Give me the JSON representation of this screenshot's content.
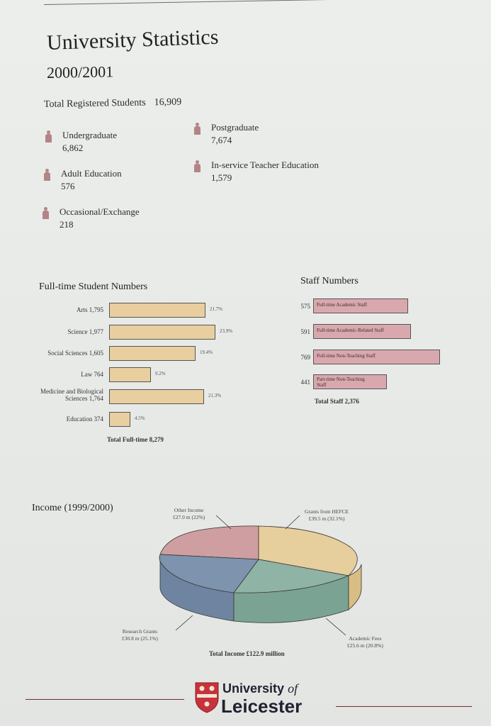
{
  "header": {
    "title": "University Statistics",
    "year": "2000/2001"
  },
  "students": {
    "total_label": "Total Registered Students",
    "total_value": "16,909",
    "categories": [
      {
        "label": "Undergraduate",
        "value": "6,862"
      },
      {
        "label": "Postgraduate",
        "value": "7,674"
      },
      {
        "label": "Adult Education",
        "value": "576"
      },
      {
        "label": "In-service Teacher Education",
        "value": "1,579"
      },
      {
        "label": "Occasional/Exchange",
        "value": "218"
      }
    ]
  },
  "colors": {
    "person_icon": "#b38486",
    "student_bar": "#e9cf9f",
    "staff_bar": "#d9a8ae",
    "pie_other": "#cf9ea0",
    "pie_hefce": "#e6cf9c",
    "pie_fees": "#8fb3a5",
    "pie_research": "#7e93ad",
    "rule": "#7a2a2a"
  },
  "fulltime": {
    "title": "Full-time Student Numbers",
    "total": "Total Full-time 8,279"
  },
  "staff": {
    "title": "Staff Numbers",
    "total": "Total Staff 2,376"
  },
  "income": {
    "title": "Income (1999/2000)",
    "total": "Total Income £122.9 million"
  },
  "logo": {
    "line1_a": "University",
    "line1_b": "of",
    "line2": "Leicester",
    "crest_icon": "university-crest-icon"
  },
  "chart_data": [
    {
      "type": "bar",
      "title": "Full-time Student Numbers",
      "categories": [
        "Arts",
        "Science",
        "Social Sciences",
        "Law",
        "Medicine and Biological Sciences",
        "Education"
      ],
      "labels": [
        "Arts 1,795",
        "Science 1,977",
        "Social Sciences 1,605",
        "Law 764",
        "Medicine and Biological Sciences 1,764",
        "Education 374"
      ],
      "values": [
        1795,
        1977,
        1605,
        764,
        1764,
        374
      ],
      "percent_labels": [
        "21.7%",
        "23.9%",
        "19.4%",
        "9.2%",
        "21.3%",
        "4.5%"
      ],
      "orientation": "horizontal"
    },
    {
      "type": "bar",
      "title": "Staff Numbers",
      "categories": [
        "Full-time Academic Staff",
        "Full-time Academic-Related Staff",
        "Full-time Non-Teaching Staff",
        "Part-time Non-Teaching Staff"
      ],
      "values": [
        575,
        591,
        769,
        441
      ],
      "value_labels": [
        "575",
        "591",
        "769",
        "441"
      ],
      "orientation": "horizontal"
    },
    {
      "type": "pie",
      "title": "Income (1999/2000)",
      "slices": [
        {
          "name": "Other Income",
          "value": 27.0,
          "percent": 22,
          "label": "£27.0 m (22%)"
        },
        {
          "name": "Grants from HEFCE",
          "value": 39.5,
          "percent": 32.1,
          "label": "£39.5 m (32.1%)"
        },
        {
          "name": "Academic Fees",
          "value": 25.6,
          "percent": 20.8,
          "label": "£25.6 m (20.8%)"
        },
        {
          "name": "Research Grants",
          "value": 30.8,
          "percent": 25.1,
          "label": "£30.8 m (25.1%)"
        }
      ],
      "style": "3d"
    }
  ]
}
